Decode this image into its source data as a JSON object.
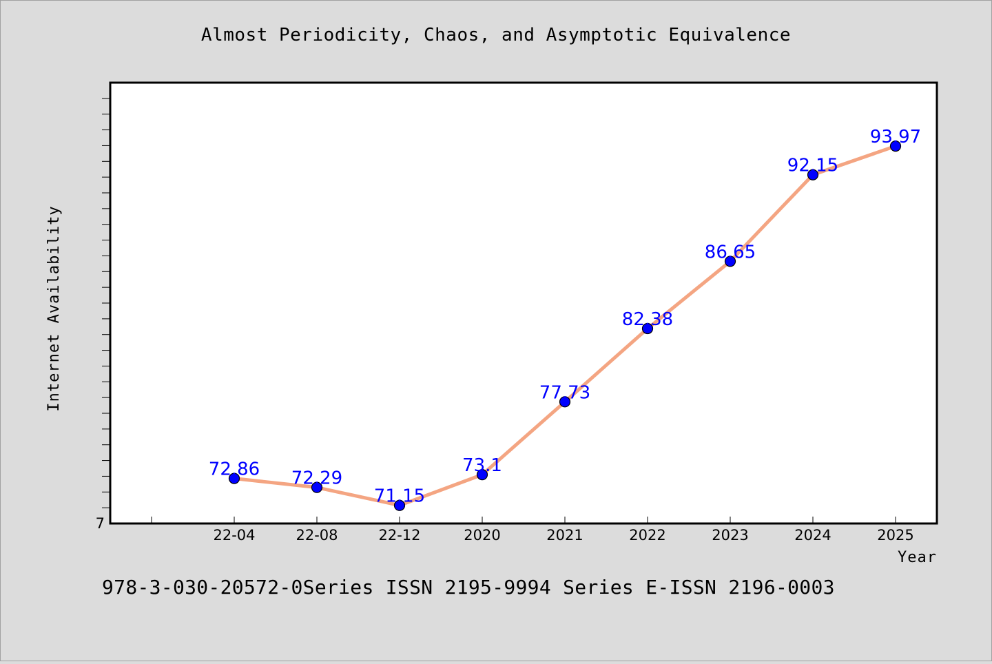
{
  "title": "Almost Periodicity, Chaos, and Asymptotic Equivalence",
  "footer": "978-3-030-20572-0Series ISSN 2195-9994 Series E-ISSN 2196-0003",
  "colors": {
    "background": "#dcdcdc",
    "plot_background": "#ffffff",
    "line": "#f4a582",
    "marker": "#0000ff",
    "label": "#0000ff"
  },
  "chart_data": {
    "type": "line",
    "title": "Almost Periodicity, Chaos, and Asymptotic Equivalence",
    "xlabel": "Year",
    "ylabel": "Internet Availability",
    "categories": [
      "22-04",
      "22-08",
      "22-12",
      "2020",
      "2021",
      "2022",
      "2023",
      "2024",
      "2025"
    ],
    "series": [
      {
        "values": [
          72.86,
          72.29,
          71.15,
          73.1,
          77.73,
          82.38,
          86.65,
          92.15,
          93.97
        ],
        "labels": [
          "72.86",
          "72.29",
          "71.15",
          "73.1",
          "77.73",
          "82.38",
          "86.65",
          "92.15",
          "93.97"
        ]
      }
    ],
    "ylim": [
      70,
      98
    ],
    "y_tick_labels": [
      {
        "value": 70,
        "label": "7"
      }
    ],
    "grid": false,
    "legend": "none"
  }
}
